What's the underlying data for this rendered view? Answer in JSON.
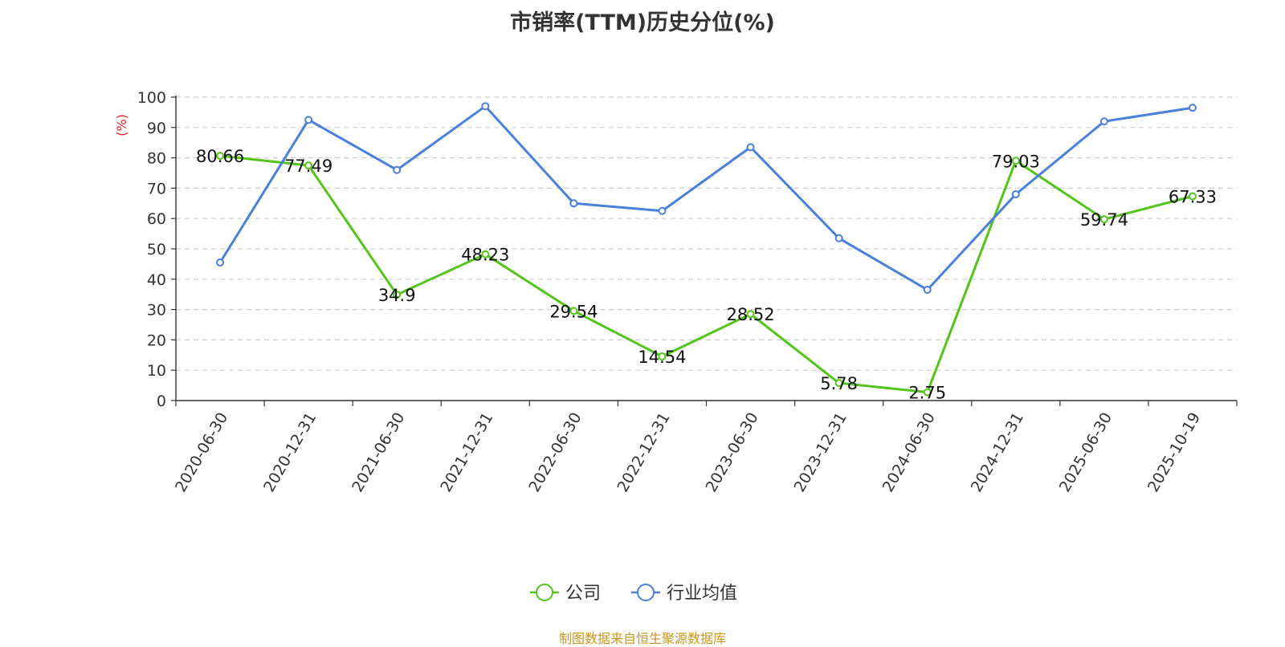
{
  "title": "市销率(TTM)历史分位(%)",
  "source": "制图数据来自恒生聚源数据库",
  "chart_data": {
    "type": "line",
    "title": "市销率(TTM)历史分位(%)",
    "ylabel": "(%)",
    "xlabel": "",
    "ylim": [
      0,
      100
    ],
    "yticks": [
      0,
      10,
      20,
      30,
      40,
      50,
      60,
      70,
      80,
      90,
      100
    ],
    "grid": true,
    "legend_position": "bottom",
    "categories": [
      "2020-06-30",
      "2020-12-31",
      "2021-06-30",
      "2021-12-31",
      "2022-06-30",
      "2022-12-31",
      "2023-06-30",
      "2023-12-31",
      "2024-06-30",
      "2024-12-31",
      "2025-06-30",
      "2025-10-19"
    ],
    "series": [
      {
        "name": "公司",
        "color": "#52c41a",
        "values": [
          80.66,
          77.49,
          34.9,
          48.23,
          29.54,
          14.54,
          28.52,
          5.78,
          2.75,
          79.03,
          59.74,
          67.33
        ],
        "labels": [
          "80.66",
          "77.49",
          "34.9",
          "48.23",
          "29.54",
          "14.54",
          "28.52",
          "5.78",
          "2.75",
          "79.03",
          "59.74",
          "67.33"
        ]
      },
      {
        "name": "行业均值",
        "color": "#4a7fdc",
        "values": [
          45.5,
          92.5,
          76,
          97,
          65,
          62.5,
          83.5,
          53.5,
          36.5,
          68,
          92,
          96.5
        ]
      }
    ]
  }
}
